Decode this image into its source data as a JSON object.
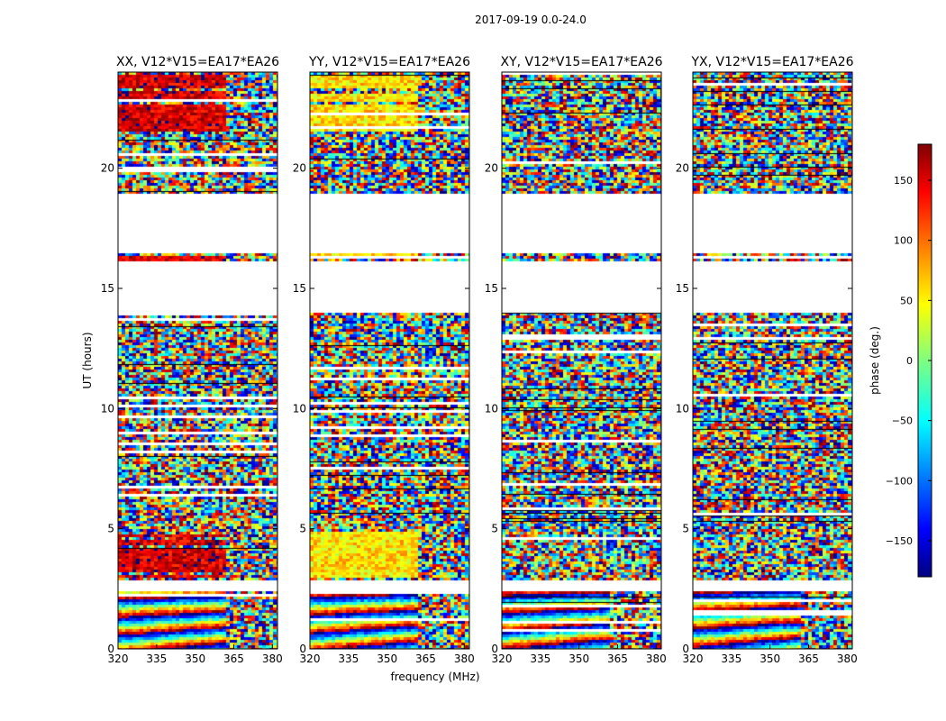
{
  "chart_data": {
    "type": "heatmap",
    "suptitle": "2017-09-19 0.0-24.0",
    "xlabel": "frequency (MHz)",
    "ylabel": "UT (hours)",
    "xlim": [
      320,
      382
    ],
    "ylim": [
      0,
      24
    ],
    "xticks": [
      320,
      335,
      350,
      365,
      380
    ],
    "yticks": [
      0,
      5,
      10,
      15,
      20
    ],
    "panels": [
      {
        "title": "XX, V12*V15=EA17*EA26",
        "product": "XX",
        "coherent_phase_deg": 150
      },
      {
        "title": "YY, V12*V15=EA17*EA26",
        "product": "YY",
        "coherent_phase_deg": 55
      },
      {
        "title": "XY, V12*V15=EA17*EA26",
        "product": "XY",
        "coherent_phase_deg": null
      },
      {
        "title": "YX, V12*V15=EA17*EA26",
        "product": "YX",
        "coherent_phase_deg": null
      }
    ],
    "no_data_ut_ranges": [
      [
        14.1,
        16.2
      ],
      [
        16.5,
        19.0
      ],
      [
        2.45,
        2.9
      ]
    ],
    "rfi_edge_freq_mhz": 362,
    "colorbar": {
      "label": "phase (deg.)",
      "range": [
        -180,
        180
      ],
      "ticks": [
        150,
        100,
        50,
        0,
        -50,
        -100,
        -150
      ],
      "tick_labels": [
        "150",
        "100",
        "50",
        "0",
        "−50",
        "−100",
        "−150"
      ],
      "colormap": "jet"
    }
  }
}
